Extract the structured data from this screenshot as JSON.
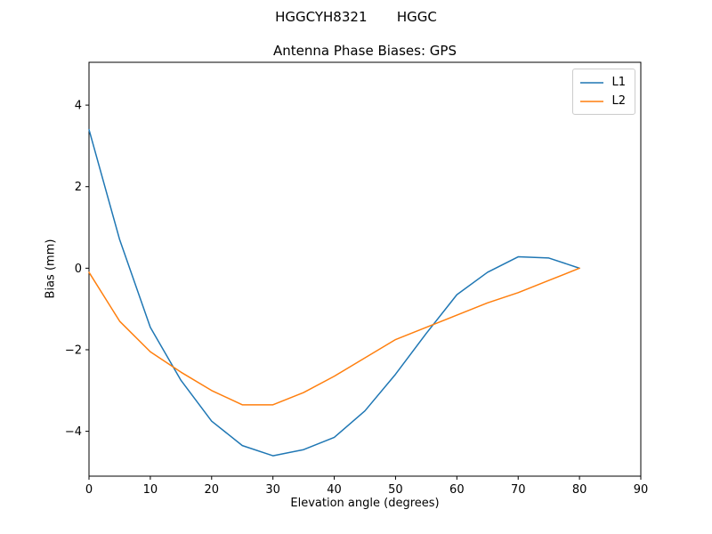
{
  "figure": {
    "suptitle": "HGGCYH8321       HGGC",
    "background_color": "#ffffff",
    "axes_edge_color": "#000000",
    "legend_edge_color": "#cccccc"
  },
  "chart_data": {
    "type": "line",
    "title": "Antenna Phase Biases: GPS",
    "xlabel": "Elevation angle (degrees)",
    "ylabel": "Bias (mm)",
    "xlim": [
      0,
      90
    ],
    "ylim": [
      -5.1,
      5.05
    ],
    "xticks": [
      0,
      10,
      20,
      30,
      40,
      50,
      60,
      70,
      80,
      90
    ],
    "yticks": [
      -4,
      -2,
      0,
      2,
      4
    ],
    "grid": false,
    "legend_position": "upper right",
    "x": [
      0,
      5,
      10,
      15,
      20,
      25,
      30,
      35,
      40,
      45,
      50,
      55,
      60,
      65,
      70,
      75,
      80
    ],
    "series": [
      {
        "name": "L1",
        "color": "#1f77b4",
        "values": [
          3.4,
          0.7,
          -1.45,
          -2.75,
          -3.75,
          -4.35,
          -4.6,
          -4.45,
          -4.15,
          -3.5,
          -2.6,
          -1.6,
          -0.65,
          -0.1,
          0.28,
          0.25,
          0.0
        ]
      },
      {
        "name": "L2",
        "color": "#ff7f0e",
        "values": [
          -0.1,
          -1.3,
          -2.05,
          -2.55,
          -3.0,
          -3.35,
          -3.35,
          -3.05,
          -2.65,
          -2.2,
          -1.75,
          -1.45,
          -1.15,
          -0.85,
          -0.6,
          -0.3,
          0.0
        ]
      }
    ]
  }
}
